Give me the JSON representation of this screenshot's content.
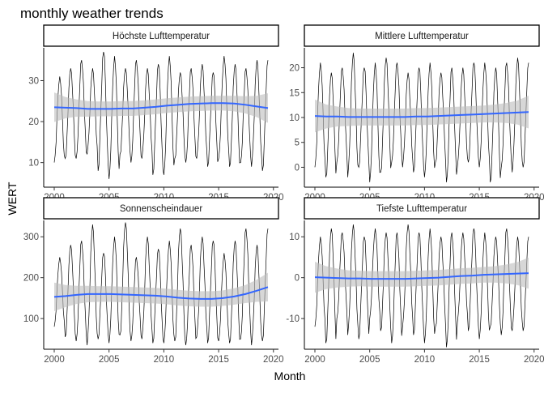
{
  "title": "monthly weather trends",
  "chart_data": {
    "type": "line",
    "title": "monthly weather trends",
    "xlabel": "Month",
    "ylabel": "WERT",
    "x_range": [
      2000,
      2019.5
    ],
    "x_ticks": [
      "2000",
      "2005",
      "2010",
      "2015",
      "2020"
    ],
    "grid": false,
    "facets": [
      {
        "label": "Höchste Lufttemperatur",
        "ylim": [
          4,
          38
        ],
        "y_ticks": [
          "10",
          "20",
          "30"
        ],
        "min_trough": [
          10,
          11,
          11,
          12,
          8,
          6,
          12,
          10,
          11,
          7,
          7,
          11,
          10,
          11,
          9,
          11,
          9,
          10,
          9,
          8
        ],
        "max_peak": [
          31,
          33,
          35,
          33,
          37,
          36,
          33,
          35,
          33,
          34,
          36,
          32,
          33,
          34,
          32,
          36,
          34,
          33,
          35,
          35
        ],
        "smooth": [
          23.5,
          23.4,
          23.3,
          23.1,
          23.1,
          23.1,
          23.2,
          23.2,
          23.4,
          23.6,
          23.9,
          24.1,
          24.3,
          24.4,
          24.5,
          24.5,
          24.4,
          24.1,
          23.7,
          23.3
        ],
        "band_half": [
          3.6,
          2.6,
          2.1,
          1.9,
          1.8,
          1.8,
          1.8,
          1.8,
          1.8,
          1.8,
          1.8,
          1.8,
          1.8,
          1.8,
          1.8,
          1.8,
          1.9,
          2.1,
          2.6,
          3.6
        ]
      },
      {
        "label": "Mittlere Lufttemperatur",
        "ylim": [
          -4,
          24
        ],
        "y_ticks": [
          "0",
          "5",
          "10",
          "15",
          "20"
        ],
        "min_trough": [
          0,
          -2,
          1,
          -2,
          0,
          -3,
          -1,
          1,
          0,
          -1,
          -2,
          1,
          -3,
          0,
          1,
          0,
          -3,
          0,
          -1,
          0
        ],
        "max_peak": [
          21,
          19,
          20,
          23,
          20,
          21,
          22,
          21,
          19,
          20,
          21,
          19,
          20,
          20,
          21,
          21,
          20,
          21,
          22,
          21
        ],
        "smooth": [
          10.3,
          10.2,
          10.2,
          10.1,
          10.1,
          10.1,
          10.1,
          10.1,
          10.1,
          10.2,
          10.2,
          10.3,
          10.4,
          10.5,
          10.6,
          10.7,
          10.8,
          10.9,
          11.0,
          11.1
        ],
        "band_half": [
          3.3,
          2.4,
          2.0,
          1.8,
          1.7,
          1.7,
          1.7,
          1.7,
          1.7,
          1.7,
          1.7,
          1.7,
          1.7,
          1.7,
          1.7,
          1.7,
          1.8,
          2.0,
          2.4,
          3.3
        ]
      },
      {
        "label": "Sonnenscheindauer",
        "ylim": [
          25,
          340
        ],
        "y_ticks": [
          "100",
          "200",
          "300"
        ],
        "min_trough": [
          80,
          55,
          45,
          35,
          50,
          40,
          60,
          45,
          50,
          40,
          40,
          45,
          35,
          55,
          40,
          45,
          40,
          50,
          35,
          45
        ],
        "max_peak": [
          250,
          280,
          290,
          330,
          260,
          300,
          335,
          250,
          300,
          270,
          290,
          320,
          280,
          300,
          290,
          260,
          290,
          320,
          280,
          320
        ],
        "smooth": [
          153,
          155,
          158,
          160,
          160,
          160,
          159,
          158,
          157,
          156,
          154,
          151,
          149,
          148,
          148,
          150,
          154,
          160,
          168,
          177
        ],
        "band_half": [
          35,
          27,
          22,
          20,
          19,
          19,
          19,
          19,
          19,
          19,
          19,
          19,
          19,
          19,
          19,
          19,
          20,
          22,
          27,
          35
        ]
      },
      {
        "label": "Tiefste Lufttemperatur",
        "ylim": [
          -17.5,
          14
        ],
        "y_ticks": [
          "-10",
          "0",
          "10"
        ],
        "min_trough": [
          -12,
          -16,
          -10,
          -14,
          -15,
          -10,
          -13,
          -16,
          -12,
          -14,
          -16,
          -12,
          -17,
          -11,
          -13,
          -15,
          -12,
          -14,
          -13,
          -13
        ],
        "max_peak": [
          10,
          12,
          11,
          13,
          10,
          12,
          11,
          11,
          13,
          11,
          12,
          10,
          11,
          11,
          12,
          11,
          10,
          12,
          10,
          10
        ],
        "smooth": [
          0.1,
          0.0,
          -0.1,
          -0.2,
          -0.2,
          -0.3,
          -0.3,
          -0.3,
          -0.3,
          -0.2,
          -0.1,
          0.0,
          0.2,
          0.4,
          0.5,
          0.7,
          0.8,
          0.9,
          1.0,
          1.1
        ],
        "band_half": [
          3.8,
          2.8,
          2.3,
          2.0,
          1.9,
          1.9,
          1.9,
          1.9,
          1.9,
          1.9,
          1.9,
          1.9,
          1.9,
          1.9,
          1.9,
          1.9,
          2.0,
          2.3,
          2.8,
          3.8
        ]
      }
    ]
  },
  "colors": {
    "line": "#000000",
    "smooth": "#3366FF",
    "band": "#BDBDBD",
    "strip_fill": "#FFFFFF",
    "tick_text": "#4D4D4D"
  }
}
